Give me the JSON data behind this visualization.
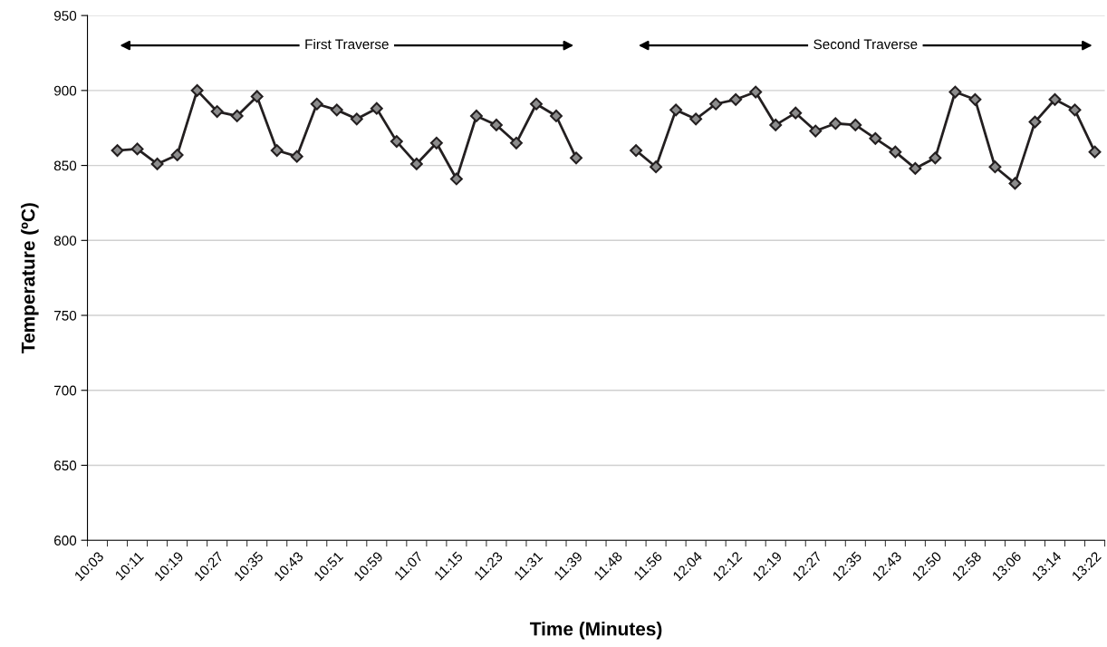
{
  "chart_data": {
    "type": "line",
    "xlabel": "Time (Minutes)",
    "ylabel": "Temperature (ºC)",
    "categories": [
      "10:03",
      null,
      "10:11",
      null,
      "10:19",
      null,
      "10:27",
      null,
      "10:35",
      null,
      "10:43",
      null,
      "10:51",
      null,
      "10:59",
      null,
      "11:07",
      null,
      "11:15",
      null,
      "11:23",
      null,
      "11:31",
      null,
      "11:39",
      null,
      "11:48",
      null,
      "11:56",
      null,
      "12:04",
      null,
      "12:12",
      null,
      "12:19",
      null,
      "12:27",
      null,
      "12:35",
      null,
      "12:43",
      null,
      "12:50",
      null,
      "12:58",
      null,
      "13:06",
      null,
      "13:14",
      null,
      "13:22"
    ],
    "series": [
      {
        "color": "#231f20",
        "values": [
          null,
          860,
          861,
          851,
          857,
          900,
          886,
          883,
          896,
          860,
          856,
          891,
          887,
          881,
          888,
          866,
          851,
          865,
          841,
          883,
          877,
          865,
          891,
          883,
          855,
          null,
          null,
          860,
          849,
          887,
          881,
          891,
          894,
          899,
          877,
          885,
          873,
          878,
          877,
          868,
          859,
          848,
          855,
          899,
          894,
          849,
          838,
          879,
          894,
          887,
          859
        ]
      }
    ],
    "ylim": [
      600,
      950
    ],
    "yticks": [
      600,
      650,
      700,
      750,
      800,
      850,
      900,
      950
    ],
    "grid": "y",
    "marker": "diamond",
    "line_style": "solid",
    "legend": false,
    "annotations": [
      "First Traverse",
      "Second Traverse"
    ]
  }
}
